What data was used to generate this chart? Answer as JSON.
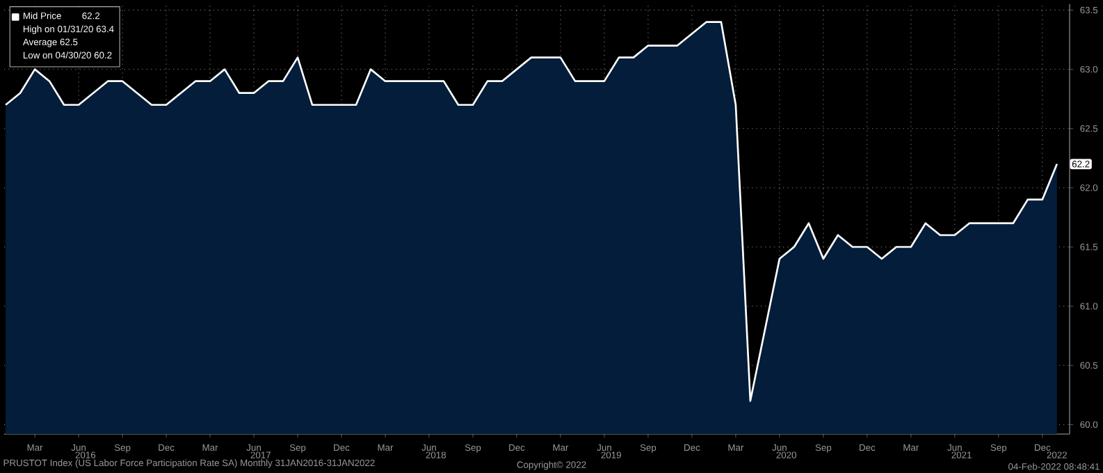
{
  "chart_data": {
    "type": "area",
    "x": [
      "2016-01",
      "2016-02",
      "2016-03",
      "2016-04",
      "2016-05",
      "2016-06",
      "2016-07",
      "2016-08",
      "2016-09",
      "2016-10",
      "2016-11",
      "2016-12",
      "2017-01",
      "2017-02",
      "2017-03",
      "2017-04",
      "2017-05",
      "2017-06",
      "2017-07",
      "2017-08",
      "2017-09",
      "2017-10",
      "2017-11",
      "2017-12",
      "2018-01",
      "2018-02",
      "2018-03",
      "2018-04",
      "2018-05",
      "2018-06",
      "2018-07",
      "2018-08",
      "2018-09",
      "2018-10",
      "2018-11",
      "2018-12",
      "2019-01",
      "2019-02",
      "2019-03",
      "2019-04",
      "2019-05",
      "2019-06",
      "2019-07",
      "2019-08",
      "2019-09",
      "2019-10",
      "2019-11",
      "2019-12",
      "2020-01",
      "2020-02",
      "2020-03",
      "2020-04",
      "2020-05",
      "2020-06",
      "2020-07",
      "2020-08",
      "2020-09",
      "2020-10",
      "2020-11",
      "2020-12",
      "2021-01",
      "2021-02",
      "2021-03",
      "2021-04",
      "2021-05",
      "2021-06",
      "2021-07",
      "2021-08",
      "2021-09",
      "2021-10",
      "2021-11",
      "2021-12",
      "2022-01"
    ],
    "series": [
      {
        "name": "Mid Price",
        "color": "#031d3a",
        "values": [
          62.7,
          62.8,
          63.0,
          62.9,
          62.7,
          62.7,
          62.8,
          62.9,
          62.9,
          62.8,
          62.7,
          62.7,
          62.8,
          62.9,
          62.9,
          63.0,
          62.8,
          62.8,
          62.9,
          62.9,
          63.1,
          62.7,
          62.7,
          62.7,
          62.7,
          63.0,
          62.9,
          62.9,
          62.9,
          62.9,
          62.9,
          62.7,
          62.7,
          62.9,
          62.9,
          63.0,
          63.1,
          63.1,
          63.1,
          62.9,
          62.9,
          62.9,
          63.1,
          63.1,
          63.2,
          63.2,
          63.2,
          63.3,
          63.4,
          63.4,
          62.7,
          60.2,
          60.8,
          61.4,
          61.5,
          61.7,
          61.4,
          61.6,
          61.5,
          61.5,
          61.4,
          61.5,
          61.5,
          61.7,
          61.6,
          61.6,
          61.7,
          61.7,
          61.7,
          61.7,
          61.9,
          61.9,
          62.2
        ]
      }
    ],
    "xlim": [
      "2015-12-28",
      "2022-01-27"
    ],
    "xticks": [
      {
        "value": "2016-03",
        "label": "Mar"
      },
      {
        "value": "2016-06",
        "label": "Jun"
      },
      {
        "value": "2016-09",
        "label": "Sep"
      },
      {
        "value": "2016-12",
        "label": "Dec"
      },
      {
        "value": "2017-03",
        "label": "Mar"
      },
      {
        "value": "2017-06",
        "label": "Jun"
      },
      {
        "value": "2017-09",
        "label": "Sep"
      },
      {
        "value": "2017-12",
        "label": "Dec"
      },
      {
        "value": "2018-03",
        "label": "Mar"
      },
      {
        "value": "2018-06",
        "label": "Jun"
      },
      {
        "value": "2018-09",
        "label": "Sep"
      },
      {
        "value": "2018-12",
        "label": "Dec"
      },
      {
        "value": "2019-03",
        "label": "Mar"
      },
      {
        "value": "2019-06",
        "label": "Jun"
      },
      {
        "value": "2019-09",
        "label": "Sep"
      },
      {
        "value": "2019-12",
        "label": "Dec"
      },
      {
        "value": "2020-03",
        "label": "Mar"
      },
      {
        "value": "2020-06",
        "label": "Jun"
      },
      {
        "value": "2020-09",
        "label": "Sep"
      },
      {
        "value": "2020-12",
        "label": "Dec"
      },
      {
        "value": "2021-03",
        "label": "Mar"
      },
      {
        "value": "2021-06",
        "label": "Jun"
      },
      {
        "value": "2021-09",
        "label": "Sep"
      },
      {
        "value": "2021-12",
        "label": "Dec"
      }
    ],
    "x2lim": [
      "2015-12-28",
      "2022-01-27"
    ],
    "x2ticks": [
      {
        "value": "2016-06-15",
        "label": "2016"
      },
      {
        "value": "2017-06-15",
        "label": "2017"
      },
      {
        "value": "2018-06-15",
        "label": "2018"
      },
      {
        "value": "2019-06-15",
        "label": "2019"
      },
      {
        "value": "2020-06-15",
        "label": "2020"
      },
      {
        "value": "2021-06-15",
        "label": "2021"
      },
      {
        "value": "2022-01",
        "label": "2022"
      }
    ],
    "ylim": [
      59.92,
      63.55
    ],
    "yticks": [
      {
        "value": 60,
        "label": "60.0"
      },
      {
        "value": 60.5,
        "label": "60.5"
      },
      {
        "value": 61,
        "label": "61.0"
      },
      {
        "value": 61.5,
        "label": "61.5"
      },
      {
        "value": 62,
        "label": "62.0"
      },
      {
        "value": 62.5,
        "label": "62.5"
      },
      {
        "value": 63,
        "label": "63.0"
      },
      {
        "value": 63.5,
        "label": "63.5"
      }
    ],
    "grid": true,
    "legend": "top left",
    "annotations": [
      {
        "text": "62.2",
        "x": "2022-01",
        "y": 62.2
      },
      "62.2",
      "High on 01/31/20 63.4",
      "Average 62.5",
      "Low on 04/30/20 60.2",
      "PRUSTOT Index (US Labor Force Participation Rate SA)  Monthly 31JAN2016-31JAN2022",
      "Copyright© 2022",
      "04-Feb-2022 08:48:41"
    ]
  }
}
